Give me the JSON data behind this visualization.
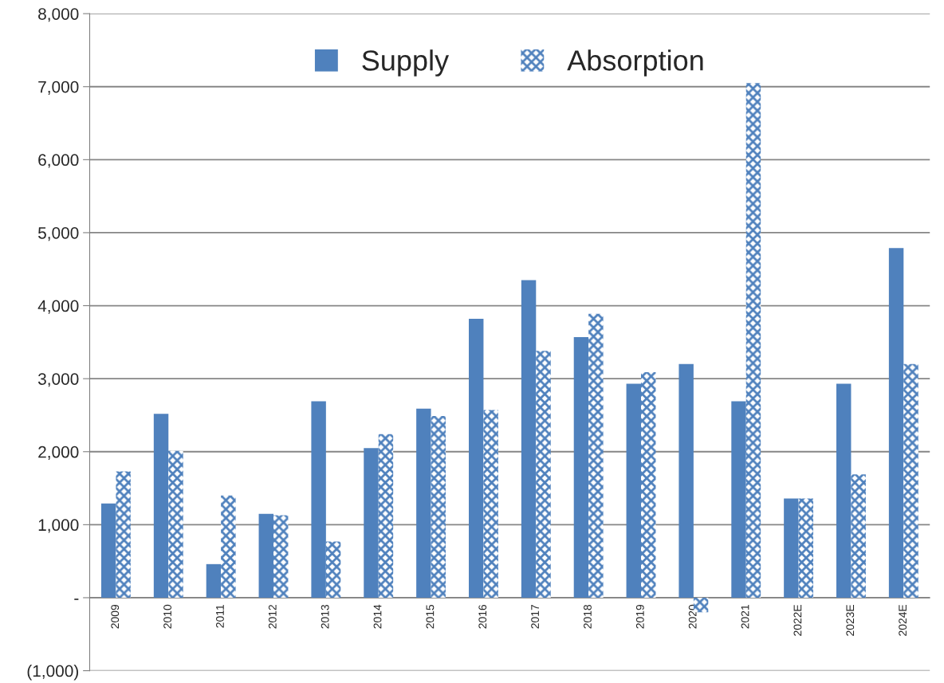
{
  "chart_data": {
    "type": "bar",
    "categories": [
      "2009",
      "2010",
      "2011",
      "2012",
      "2013",
      "2014",
      "2015",
      "2016",
      "2017",
      "2018",
      "2019",
      "2020",
      "2021",
      "2022E",
      "2023E",
      "2024E"
    ],
    "series": [
      {
        "name": "Supply",
        "color": "#4f81bd",
        "values": [
          1290,
          2520,
          460,
          1150,
          2690,
          2050,
          2590,
          3820,
          4350,
          3570,
          2930,
          3200,
          2690,
          1360,
          2930,
          4790
        ]
      },
      {
        "name": "Absorption",
        "color": "#4f81bd",
        "values": [
          1730,
          2010,
          1400,
          1130,
          770,
          2240,
          2490,
          2570,
          3380,
          3890,
          3090,
          -200,
          7050,
          1360,
          1690,
          3200
        ]
      }
    ],
    "ylim": [
      -1000,
      8000
    ],
    "yticks": [
      {
        "value": -1000,
        "label": "(1,000)"
      },
      {
        "value": 0,
        "label": "-"
      },
      {
        "value": 1000,
        "label": "1,000"
      },
      {
        "value": 2000,
        "label": "2,000"
      },
      {
        "value": 3000,
        "label": "3,000"
      },
      {
        "value": 4000,
        "label": "4,000"
      },
      {
        "value": 5000,
        "label": "5,000"
      },
      {
        "value": 6000,
        "label": "6,000"
      },
      {
        "value": 7000,
        "label": "7,000"
      },
      {
        "value": 8000,
        "label": "8,000"
      }
    ],
    "grid": "y",
    "legend": "top"
  }
}
